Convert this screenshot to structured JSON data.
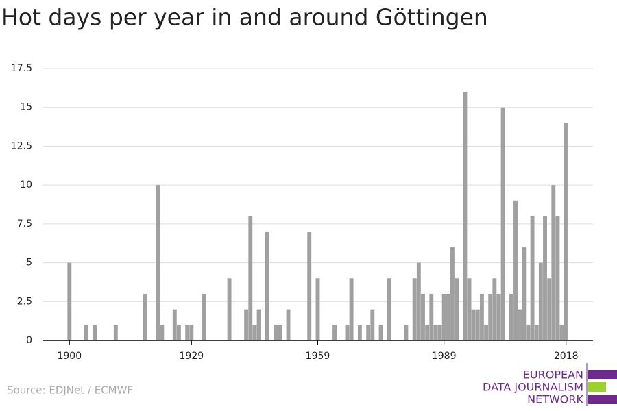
{
  "chart_data": {
    "type": "bar",
    "title": "Hot days per year in and around Göttingen",
    "x": [
      1900,
      1901,
      1902,
      1903,
      1904,
      1905,
      1906,
      1907,
      1908,
      1909,
      1910,
      1911,
      1912,
      1913,
      1914,
      1915,
      1916,
      1917,
      1918,
      1919,
      1920,
      1921,
      1922,
      1923,
      1924,
      1925,
      1926,
      1927,
      1928,
      1929,
      1930,
      1931,
      1932,
      1933,
      1934,
      1935,
      1936,
      1937,
      1938,
      1939,
      1940,
      1941,
      1942,
      1943,
      1944,
      1945,
      1946,
      1947,
      1948,
      1949,
      1950,
      1951,
      1952,
      1953,
      1954,
      1955,
      1956,
      1957,
      1958,
      1959,
      1960,
      1961,
      1962,
      1963,
      1964,
      1965,
      1966,
      1967,
      1968,
      1969,
      1970,
      1971,
      1972,
      1973,
      1974,
      1975,
      1976,
      1977,
      1978,
      1979,
      1980,
      1981,
      1982,
      1983,
      1984,
      1985,
      1986,
      1987,
      1988,
      1989,
      1990,
      1991,
      1992,
      1993,
      1994,
      1995,
      1996,
      1997,
      1998,
      1999,
      2000,
      2001,
      2002,
      2003,
      2004,
      2005,
      2006,
      2007,
      2008,
      2009,
      2010,
      2011,
      2012,
      2013,
      2014,
      2015,
      2016,
      2017,
      2018
    ],
    "values": [
      5,
      0,
      0,
      0,
      1,
      0,
      1,
      0,
      0,
      0,
      0,
      1,
      0,
      0,
      0,
      0,
      0,
      0,
      3,
      0,
      0,
      10,
      1,
      0,
      0,
      2,
      1,
      0,
      1,
      1,
      0,
      0,
      3,
      0,
      0,
      0,
      0,
      0,
      4,
      0,
      0,
      0,
      2,
      8,
      1,
      2,
      0,
      7,
      0,
      1,
      1,
      0,
      2,
      0,
      0,
      0,
      0,
      7,
      0,
      4,
      0,
      0,
      0,
      1,
      0,
      0,
      1,
      4,
      0,
      1,
      0,
      1,
      2,
      0,
      1,
      0,
      4,
      0,
      0,
      0,
      1,
      0,
      4,
      5,
      3,
      1,
      3,
      1,
      1,
      3,
      3,
      6,
      4,
      0,
      16,
      4,
      2,
      2,
      3,
      1,
      3,
      4,
      3,
      15,
      0,
      3,
      9,
      2,
      6,
      1,
      8,
      1,
      5,
      8,
      4,
      10,
      8,
      1,
      14
    ],
    "color": "#a0a0a0",
    "xlim": [
      1893.6,
      2024.4
    ],
    "xticks": [
      1900,
      1929,
      1959,
      1989,
      2018
    ],
    "ylim": [
      0,
      17.5
    ],
    "yticks": [
      0,
      2.5,
      5,
      7.5,
      10,
      12.5,
      15,
      17.5
    ],
    "grid": true,
    "source": "Source: EDJNet / ECMWF",
    "logo": [
      "EUROPEAN",
      "DATA JOURNALISM",
      "NETWORK"
    ]
  }
}
